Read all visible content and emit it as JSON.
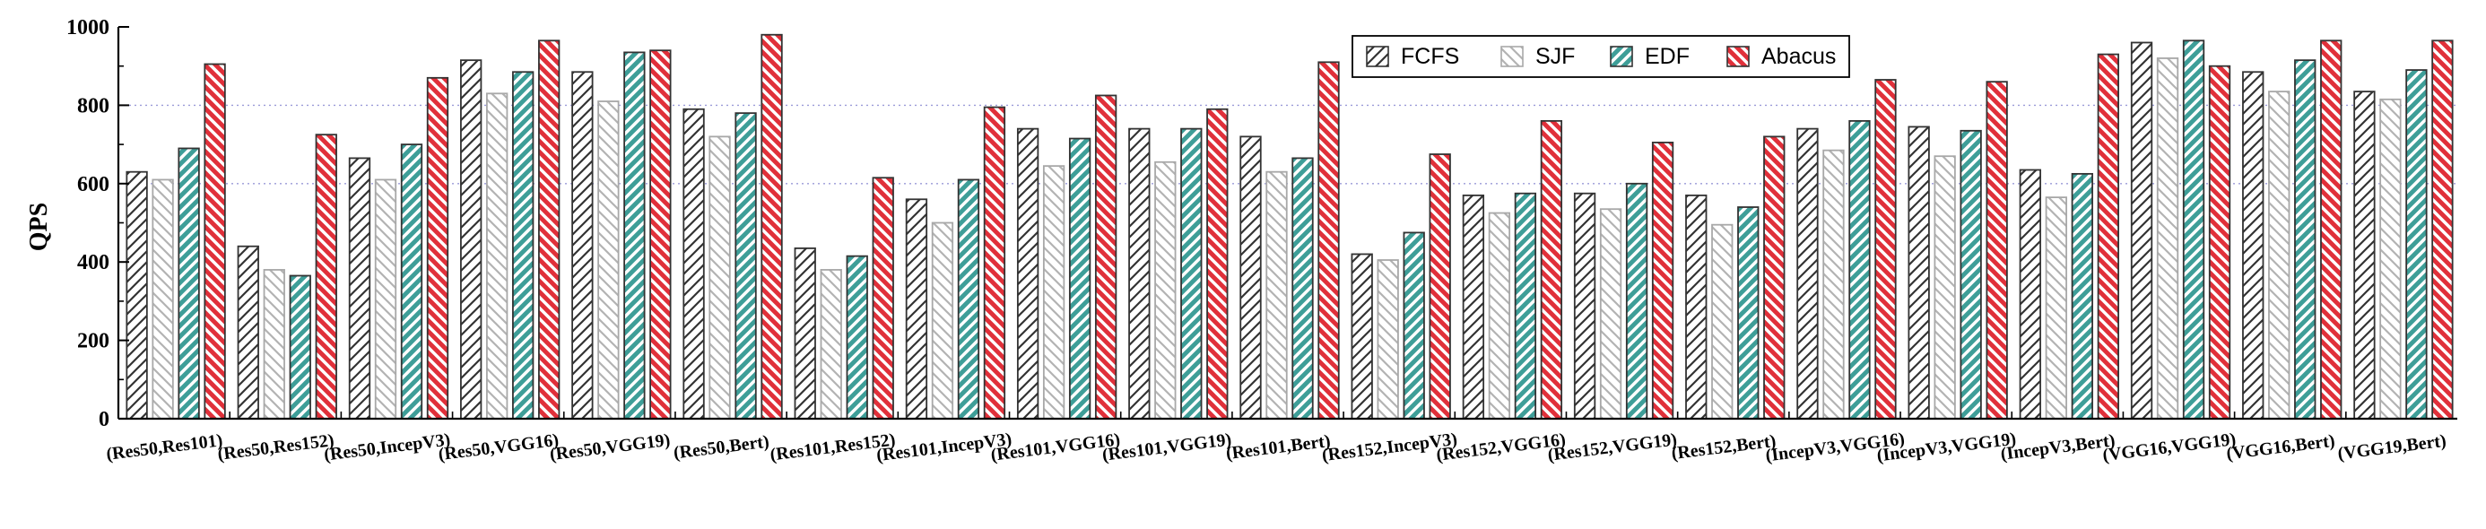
{
  "chart_data": {
    "type": "bar",
    "title": "",
    "xlabel": "",
    "ylabel": "QPS",
    "ylim": [
      0,
      1000
    ],
    "yticks": [
      0,
      200,
      400,
      600,
      800,
      1000
    ],
    "grid": "dotted horizontal at 600 and 800",
    "legend_position": "top-right",
    "categories": [
      "(Res50,Res101)",
      "(Res50,Res152)",
      "(Res50,IncepV3)",
      "(Res50,VGG16)",
      "(Res50,VGG19)",
      "(Res50,Bert)",
      "(Res101,Res152)",
      "(Res101,IncepV3)",
      "(Res101,VGG16)",
      "(Res101,VGG19)",
      "(Res101,Bert)",
      "(Res152,IncepV3)",
      "(Res152,VGG16)",
      "(Res152,VGG19)",
      "(Res152,Bert)",
      "(IncepV3,VGG16)",
      "(IncepV3,VGG19)",
      "(IncepV3,Bert)",
      "(VGG16,VGG19)",
      "(VGG16,Bert)",
      "(VGG19,Bert)"
    ],
    "series": [
      {
        "name": "FCFS",
        "color": "#333333",
        "values": [
          630,
          440,
          665,
          915,
          885,
          790,
          435,
          560,
          740,
          740,
          720,
          420,
          570,
          575,
          570,
          740,
          745,
          635,
          960,
          885,
          835
        ]
      },
      {
        "name": "SJF",
        "color": "#b3b3b3",
        "values": [
          610,
          380,
          610,
          830,
          810,
          720,
          380,
          500,
          645,
          655,
          630,
          405,
          525,
          535,
          495,
          685,
          670,
          565,
          920,
          835,
          815
        ]
      },
      {
        "name": "EDF",
        "color": "#3e9e98",
        "values": [
          690,
          365,
          700,
          885,
          935,
          780,
          415,
          610,
          715,
          740,
          665,
          475,
          575,
          600,
          540,
          760,
          735,
          625,
          965,
          915,
          890
        ]
      },
      {
        "name": "Abacus",
        "color": "#e0303a",
        "values": [
          905,
          725,
          870,
          965,
          940,
          980,
          615,
          795,
          825,
          790,
          910,
          675,
          760,
          705,
          720,
          865,
          860,
          930,
          900,
          965,
          965
        ]
      }
    ]
  }
}
